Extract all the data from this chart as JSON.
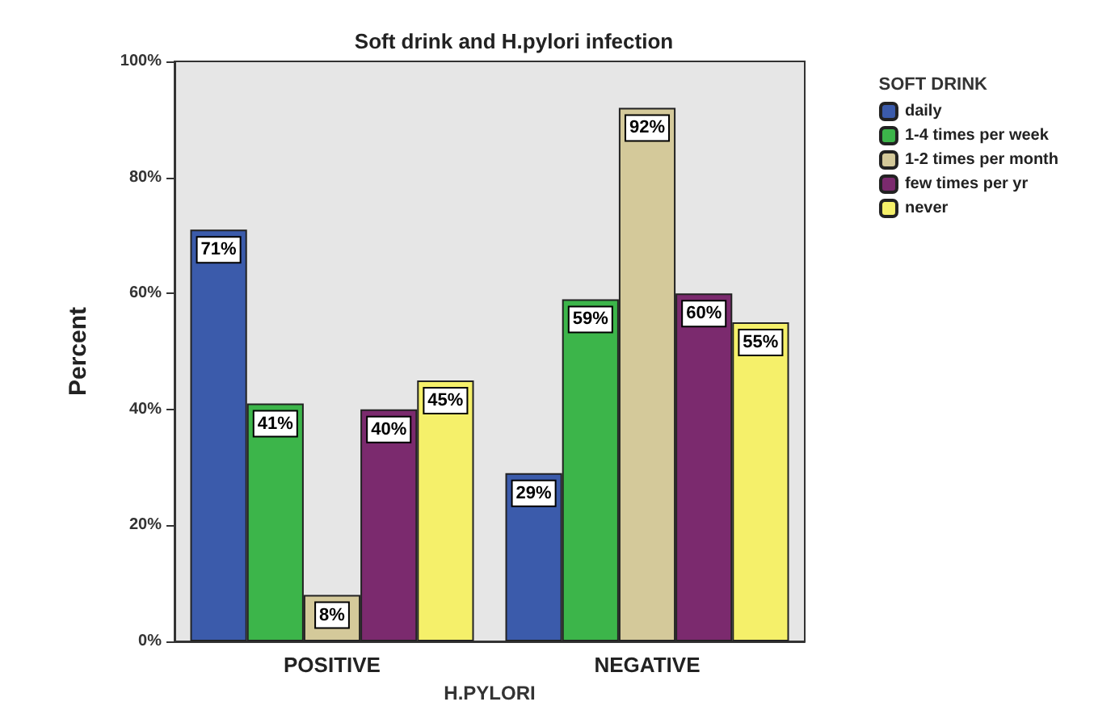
{
  "chart_data": {
    "type": "bar",
    "title": "Soft drink and H.pylori infection",
    "xlabel": "H.PYLORI",
    "ylabel": "Percent",
    "legend_title": "SOFT DRINK",
    "legend": "top right",
    "grid": false,
    "categories": [
      "POSITIVE",
      "NEGATIVE"
    ],
    "ylim": [
      0,
      100
    ],
    "yticks": [
      {
        "value": 0,
        "label": "0%"
      },
      {
        "value": 20,
        "label": "20%"
      },
      {
        "value": 40,
        "label": "40%"
      },
      {
        "value": 60,
        "label": "60%"
      },
      {
        "value": 80,
        "label": "80%"
      },
      {
        "value": 100,
        "label": "100%"
      }
    ],
    "series": [
      {
        "name": "daily",
        "color": "#3b5bab",
        "values": [
          71,
          29
        ],
        "value_labels": [
          "71%",
          "29%"
        ]
      },
      {
        "name": "1-4 times per week",
        "color": "#3cb54a",
        "values": [
          41,
          59
        ],
        "value_labels": [
          "41%",
          "59%"
        ]
      },
      {
        "name": "1-2 times per month",
        "color": "#d4c99a",
        "values": [
          8,
          92
        ],
        "value_labels": [
          "8%",
          "92%"
        ]
      },
      {
        "name": "few times per yr",
        "color": "#7b2a6e",
        "values": [
          40,
          60
        ],
        "value_labels": [
          "40%",
          "60%"
        ]
      },
      {
        "name": "never",
        "color": "#f5f06a",
        "values": [
          45,
          55
        ],
        "value_labels": [
          "45%",
          "55%"
        ]
      }
    ]
  }
}
